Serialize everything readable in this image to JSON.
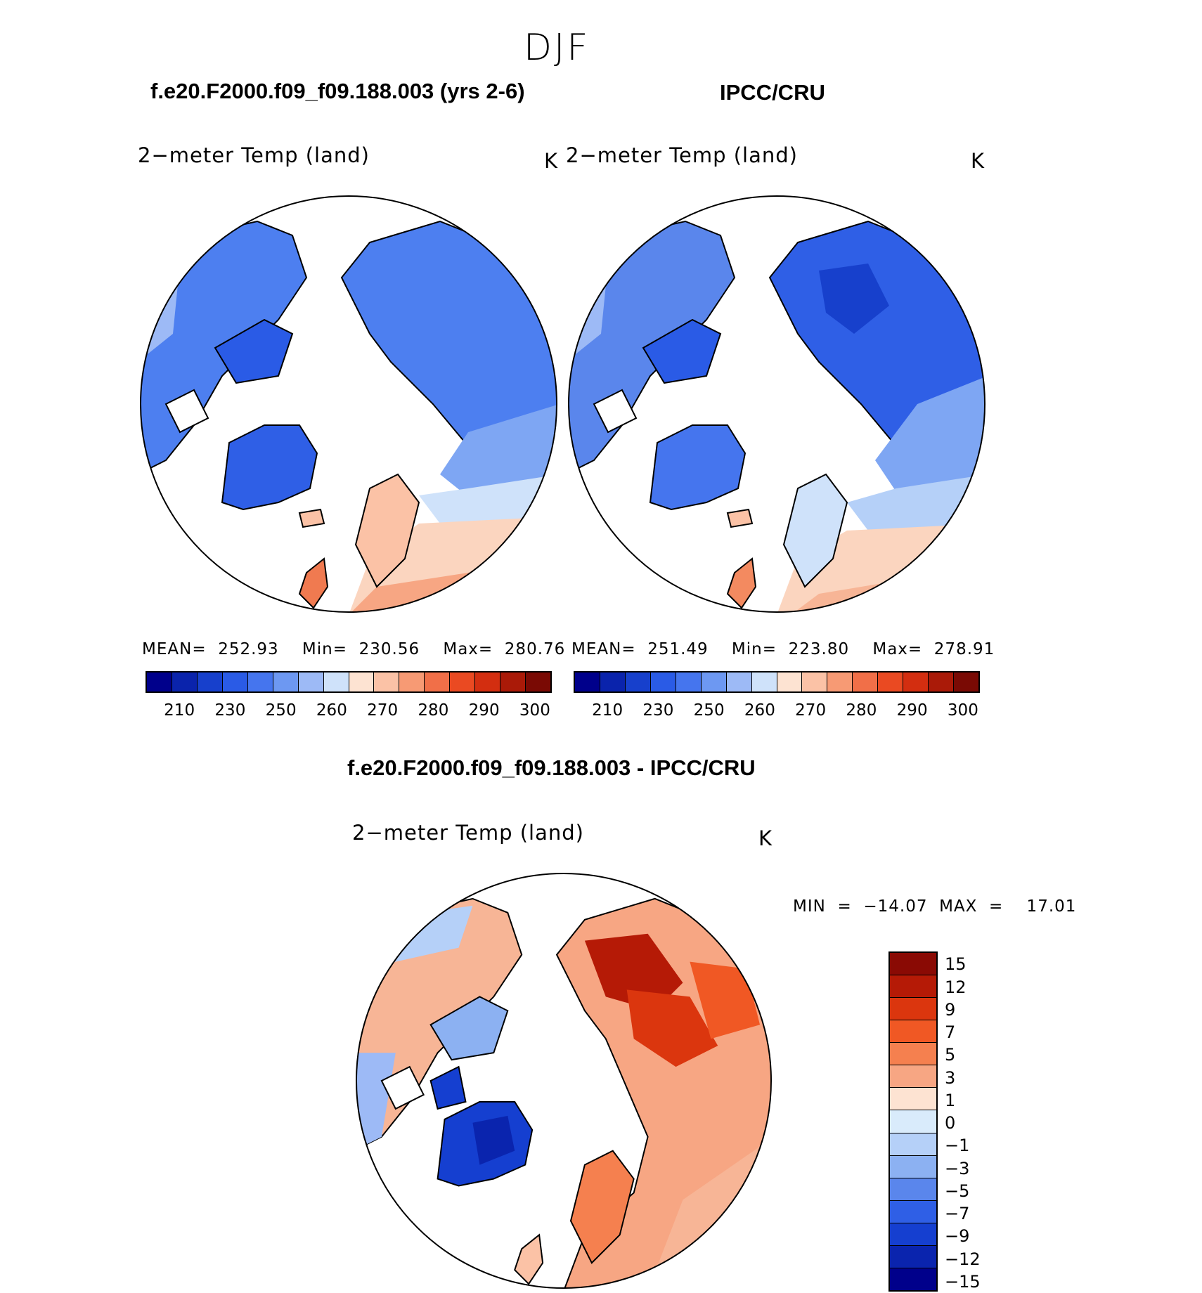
{
  "season": "DJF",
  "left_title": "f.e20.F2000.f09_f09.188.003 (yrs 2-6)",
  "right_title": "IPCC/CRU",
  "diff_title": "f.e20.F2000.f09_f09.188.003 - IPCC/CRU",
  "panels": {
    "model": {
      "variable": "2−meter Temp (land)",
      "units": "K",
      "stats": "MEAN=  252.93    Min=  230.56    Max=  280.76"
    },
    "obs": {
      "variable": "2−meter Temp (land)",
      "units": "K",
      "stats": "MEAN=  251.49    Min=  223.80    Max=  278.91"
    },
    "diff": {
      "variable": "2−meter Temp (land)",
      "units": "K",
      "stats": "MIN  =  −14.07  MAX  =    17.01"
    }
  },
  "abs_colorbar": {
    "colors": [
      "#00008b",
      "#0a23ac",
      "#1740cc",
      "#2a5be6",
      "#4575ee",
      "#6d98f2",
      "#9dbaf6",
      "#cfe2fa",
      "#fde3d2",
      "#fbc2a6",
      "#f79a74",
      "#f16f48",
      "#ea4a22",
      "#d32e10",
      "#aa1a08",
      "#7a0a04"
    ],
    "ticks": [
      "210",
      "230",
      "250",
      "260",
      "270",
      "280",
      "290",
      "300"
    ]
  },
  "diff_colorbar": {
    "colors": [
      "#8a0a04",
      "#b51a06",
      "#db360e",
      "#f05824",
      "#f5804f",
      "#f7a683",
      "#fde3d2",
      "#d9ebfb",
      "#b5d0f8",
      "#8cb1f2",
      "#5a86ec",
      "#2f5fe6",
      "#153fd0",
      "#0a24ae",
      "#00008b"
    ],
    "ticks": [
      "15",
      "12",
      "9",
      "7",
      "5",
      "3",
      "1",
      "0",
      "−1",
      "−3",
      "−5",
      "−7",
      "−9",
      "−12",
      "−15"
    ]
  }
}
